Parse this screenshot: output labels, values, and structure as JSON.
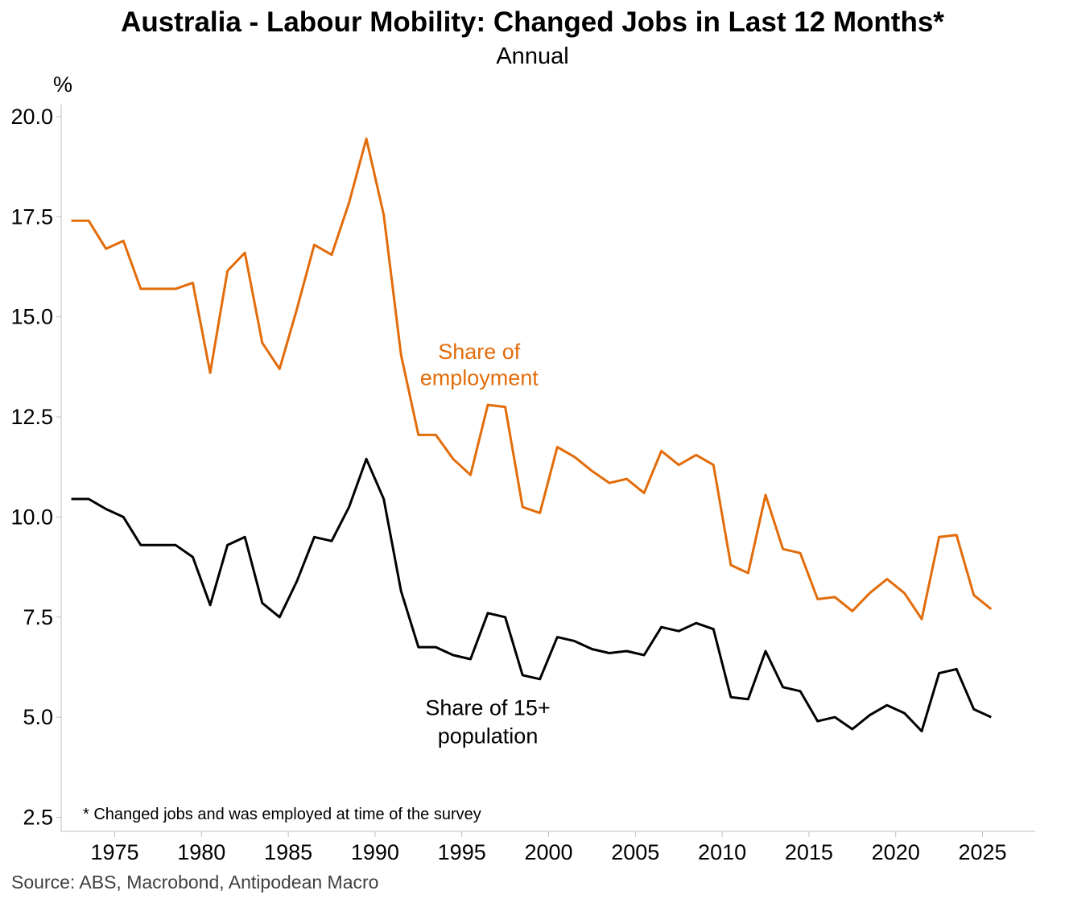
{
  "chart_data": {
    "type": "line",
    "title": "Australia - Labour Mobility: Changed Jobs in Last 12 Months*",
    "subtitle": "Annual",
    "ylabel": "%",
    "xlabel": "",
    "xlim": [
      1972,
      2028
    ],
    "ylim": [
      2.5,
      20.0
    ],
    "yticks": [
      "2.5",
      "5.0",
      "7.5",
      "10.0",
      "12.5",
      "15.0",
      "17.5",
      "20.0"
    ],
    "xticks": [
      "1975",
      "1980",
      "1985",
      "1990",
      "1995",
      "2000",
      "2005",
      "2010",
      "2015",
      "2020",
      "2025"
    ],
    "grid": false,
    "footnote": "* Changed jobs and was employed at time of the survey",
    "source": "Source: ABS, Macrobond, Antipodean Macro",
    "series": [
      {
        "name": "Share of employment",
        "label_lines": [
          "Share of",
          "employment"
        ],
        "color": "#E36C0A",
        "points": [
          [
            1972.5,
            17.4
          ],
          [
            1973.5,
            17.4
          ],
          [
            1974.5,
            16.7
          ],
          [
            1975.5,
            16.9
          ],
          [
            1976.5,
            15.7
          ],
          [
            1977.5,
            15.7
          ],
          [
            1978.5,
            15.7
          ],
          [
            1979.5,
            15.85
          ],
          [
            1980.5,
            13.6
          ],
          [
            1981.5,
            16.15
          ],
          [
            1982.5,
            16.6
          ],
          [
            1983.5,
            14.35
          ],
          [
            1984.5,
            13.7
          ],
          [
            1985.5,
            15.2
          ],
          [
            1986.5,
            16.8
          ],
          [
            1987.5,
            16.55
          ],
          [
            1988.5,
            17.85
          ],
          [
            1989.5,
            19.45
          ],
          [
            1990.5,
            17.55
          ],
          [
            1991.5,
            14.05
          ],
          [
            1992.5,
            12.05
          ],
          [
            1993.5,
            12.05
          ],
          [
            1994.5,
            11.45
          ],
          [
            1995.5,
            11.05
          ],
          [
            1996.5,
            12.8
          ],
          [
            1997.5,
            12.75
          ],
          [
            1998.5,
            10.25
          ],
          [
            1999.5,
            10.1
          ],
          [
            2000.5,
            11.75
          ],
          [
            2001.5,
            11.5
          ],
          [
            2002.5,
            11.15
          ],
          [
            2003.5,
            10.85
          ],
          [
            2004.5,
            10.95
          ],
          [
            2005.5,
            10.6
          ],
          [
            2006.5,
            11.65
          ],
          [
            2007.5,
            11.3
          ],
          [
            2008.5,
            11.55
          ],
          [
            2009.5,
            11.3
          ],
          [
            2010.5,
            8.8
          ],
          [
            2011.5,
            8.6
          ],
          [
            2012.5,
            10.55
          ],
          [
            2013.5,
            9.2
          ],
          [
            2014.5,
            9.1
          ],
          [
            2015.5,
            7.95
          ],
          [
            2016.5,
            8.0
          ],
          [
            2017.5,
            7.65
          ],
          [
            2018.5,
            8.1
          ],
          [
            2019.5,
            8.45
          ],
          [
            2020.5,
            8.1
          ],
          [
            2021.5,
            7.45
          ],
          [
            2022.5,
            9.5
          ],
          [
            2023.5,
            9.55
          ],
          [
            2024.5,
            8.05
          ],
          [
            2025.5,
            7.7
          ]
        ]
      },
      {
        "name": "Share of 15+ population",
        "label_lines": [
          "Share of 15+",
          "population"
        ],
        "color": "#000000",
        "points": [
          [
            1972.5,
            10.45
          ],
          [
            1973.5,
            10.45
          ],
          [
            1974.5,
            10.2
          ],
          [
            1975.5,
            10.0
          ],
          [
            1976.5,
            9.3
          ],
          [
            1977.5,
            9.3
          ],
          [
            1978.5,
            9.3
          ],
          [
            1979.5,
            9.0
          ],
          [
            1980.5,
            7.8
          ],
          [
            1981.5,
            9.3
          ],
          [
            1982.5,
            9.5
          ],
          [
            1983.5,
            7.85
          ],
          [
            1984.5,
            7.5
          ],
          [
            1985.5,
            8.4
          ],
          [
            1986.5,
            9.5
          ],
          [
            1987.5,
            9.4
          ],
          [
            1988.5,
            10.25
          ],
          [
            1989.5,
            11.45
          ],
          [
            1990.5,
            10.45
          ],
          [
            1991.5,
            8.15
          ],
          [
            1992.5,
            6.75
          ],
          [
            1993.5,
            6.75
          ],
          [
            1994.5,
            6.55
          ],
          [
            1995.5,
            6.45
          ],
          [
            1996.5,
            7.6
          ],
          [
            1997.5,
            7.5
          ],
          [
            1998.5,
            6.05
          ],
          [
            1999.5,
            5.95
          ],
          [
            2000.5,
            7.0
          ],
          [
            2001.5,
            6.9
          ],
          [
            2002.5,
            6.7
          ],
          [
            2003.5,
            6.6
          ],
          [
            2004.5,
            6.65
          ],
          [
            2005.5,
            6.55
          ],
          [
            2006.5,
            7.25
          ],
          [
            2007.5,
            7.15
          ],
          [
            2008.5,
            7.35
          ],
          [
            2009.5,
            7.2
          ],
          [
            2010.5,
            5.5
          ],
          [
            2011.5,
            5.45
          ],
          [
            2012.5,
            6.65
          ],
          [
            2013.5,
            5.75
          ],
          [
            2014.5,
            5.65
          ],
          [
            2015.5,
            4.9
          ],
          [
            2016.5,
            5.0
          ],
          [
            2017.5,
            4.7
          ],
          [
            2018.5,
            5.05
          ],
          [
            2019.5,
            5.3
          ],
          [
            2020.5,
            5.1
          ],
          [
            2021.5,
            4.65
          ],
          [
            2022.5,
            6.1
          ],
          [
            2023.5,
            6.2
          ],
          [
            2024.5,
            5.2
          ],
          [
            2025.5,
            5.0
          ]
        ]
      }
    ]
  }
}
